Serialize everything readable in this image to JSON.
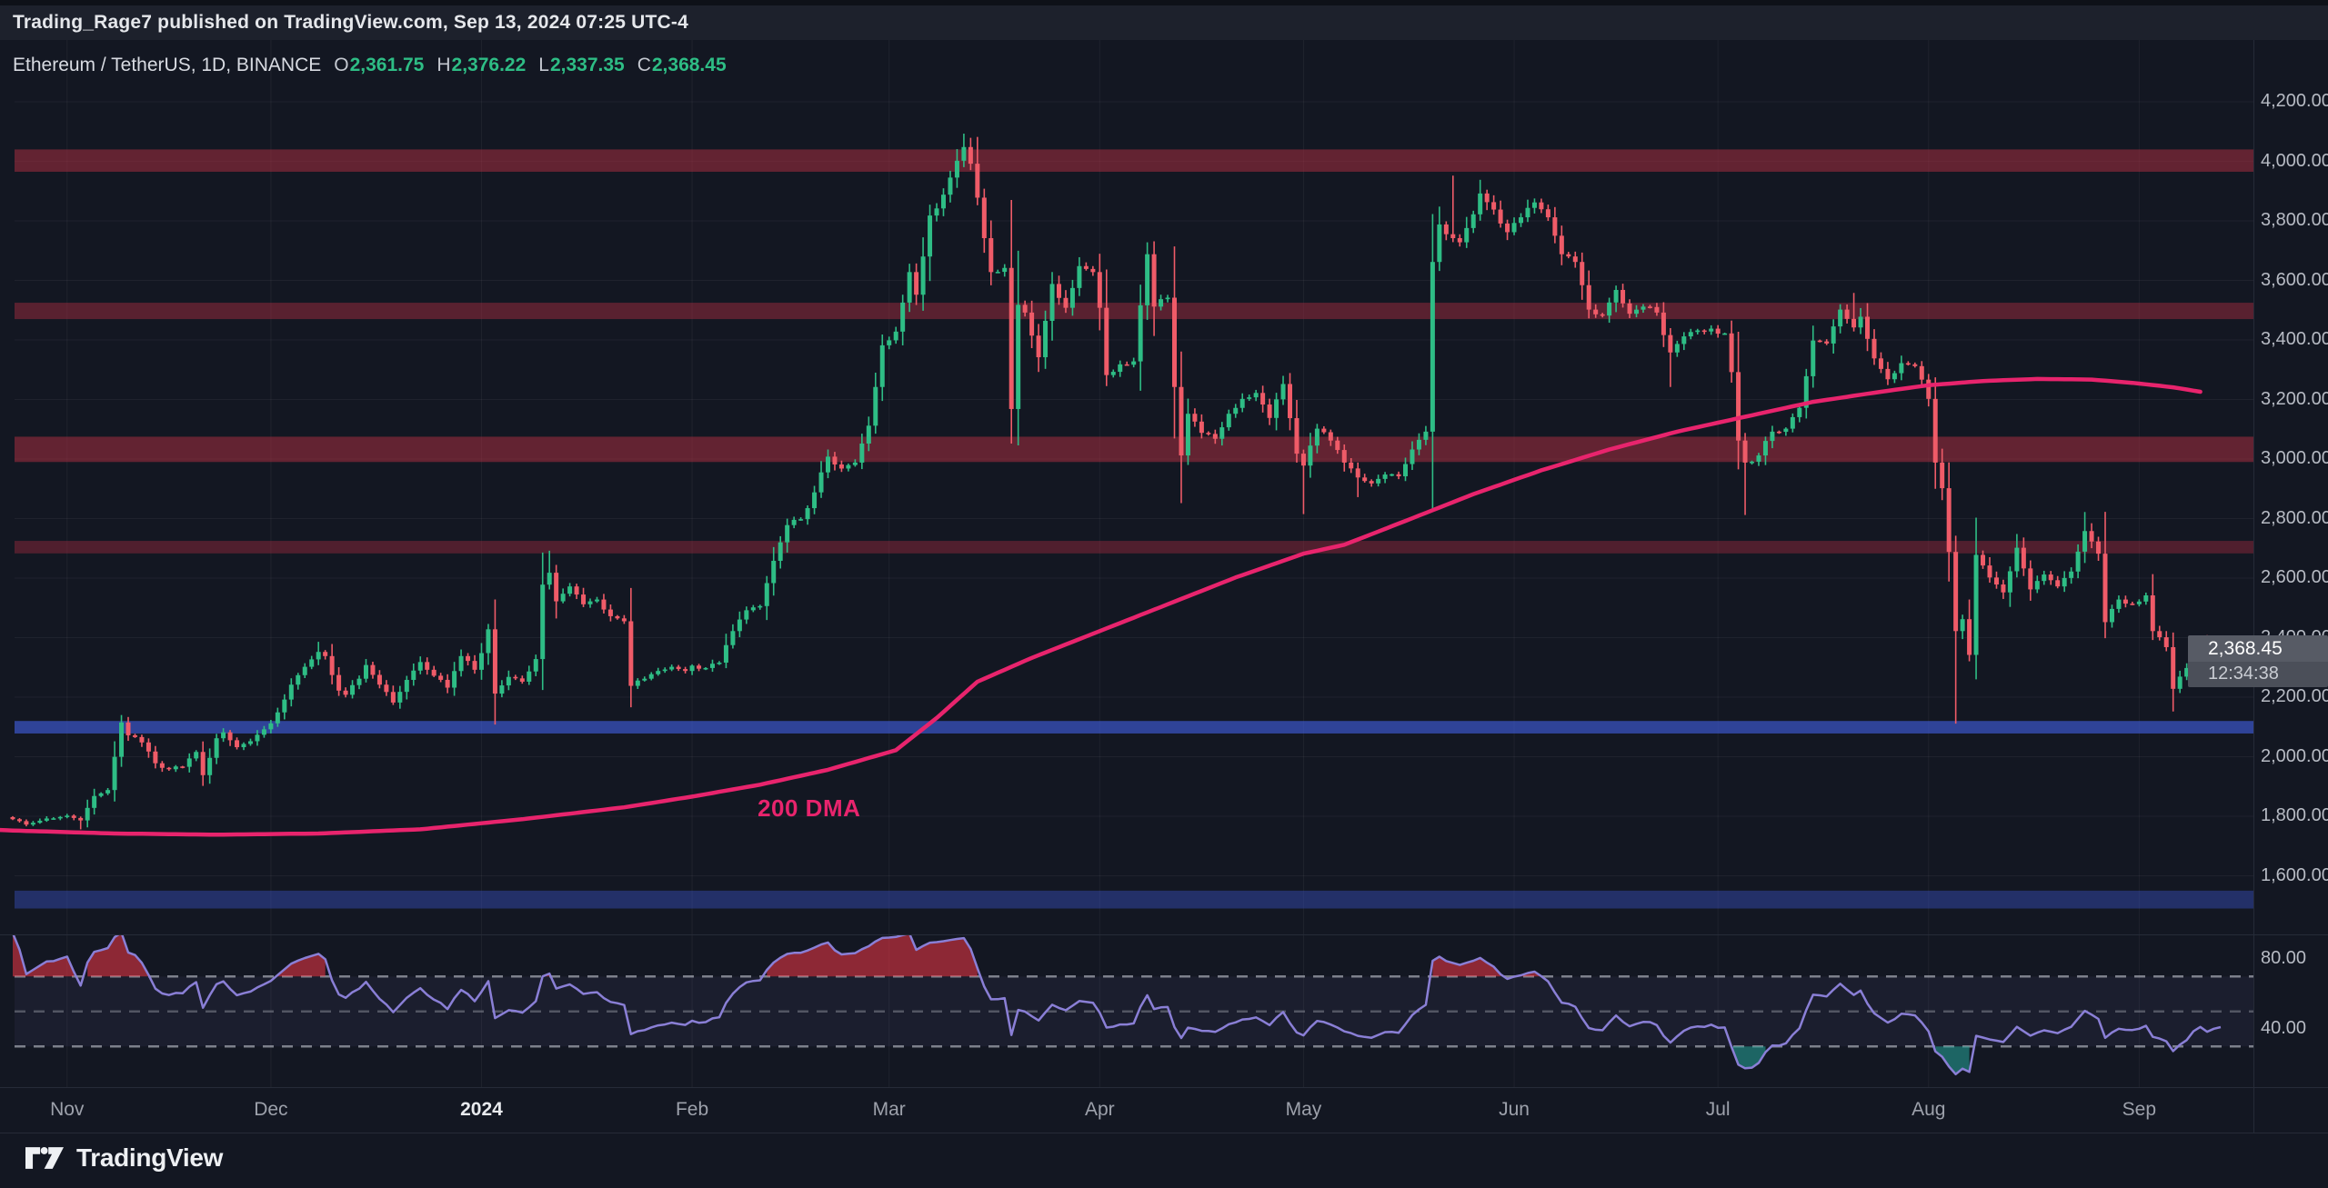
{
  "attribution": {
    "text": "Trading_Rage7 published on TradingView.com, Sep 13, 2024 07:25 UTC-4"
  },
  "legend": {
    "title": "Ethereum / TetherUS, 1D, BINANCE",
    "o_label": "O",
    "o": "2,361.75",
    "h_label": "H",
    "h": "2,376.22",
    "l_label": "L",
    "l": "2,337.35",
    "c_label": "C",
    "c": "2,368.45"
  },
  "badge": {
    "price": "2,368.45",
    "countdown": "12:34:38"
  },
  "footer": {
    "brand": "TradingView"
  },
  "colors": {
    "background": "#131722",
    "topbar": "#1d212c",
    "grid": "rgba(255,255,255,0.05)",
    "up": "#2ebd85",
    "down": "#ef5b68",
    "ma200": "#e8246d",
    "rsi_line": "#8a7fd6",
    "rsi_band": "rgba(138,127,214,0.07)",
    "rsi_overbought_fill": "rgba(242,54,69,0.55)",
    "rsi_oversold_fill": "rgba(38,166,154,0.55)",
    "axis_text": "#b7bbc4",
    "badge_bg": "#575b65"
  },
  "chart_data": {
    "type": "candlestick",
    "title": "Ethereum / TetherUS daily candles with 200 DMA, horizontal S/R zones and RSI",
    "symbol": "Ethereum / TetherUS",
    "interval": "1D",
    "exchange": "BINANCE",
    "last_ohlc": {
      "open": 2361.75,
      "high": 2376.22,
      "low": 2337.35,
      "close": 2368.45
    },
    "visible_range": {
      "start": "2023-10-24",
      "end": "2024-09-13",
      "days": 326
    },
    "price_axis": {
      "min": 1600,
      "max": 4200,
      "step": 200,
      "ylim_pane": [
        1400,
        4430
      ],
      "labels": [
        "1,600.00",
        "1,800.00",
        "2,000.00",
        "2,200.00",
        "2,400.00",
        "2,600.00",
        "2,800.00",
        "3,000.00",
        "3,200.00",
        "3,400.00",
        "3,600.00",
        "3,800.00",
        "4,000.00",
        "4,200.00"
      ]
    },
    "months": [
      {
        "label": "Nov",
        "day": 8,
        "emph": false
      },
      {
        "label": "Dec",
        "day": 38,
        "emph": false
      },
      {
        "label": "2024",
        "day": 69,
        "emph": true
      },
      {
        "label": "Feb",
        "day": 100,
        "emph": false
      },
      {
        "label": "Mar",
        "day": 129,
        "emph": false
      },
      {
        "label": "Apr",
        "day": 160,
        "emph": false
      },
      {
        "label": "May",
        "day": 190,
        "emph": false
      },
      {
        "label": "Jun",
        "day": 221,
        "emph": false
      },
      {
        "label": "Jul",
        "day": 251,
        "emph": false
      },
      {
        "label": "Aug",
        "day": 282,
        "emph": false
      },
      {
        "label": "Sep",
        "day": 313,
        "emph": false
      }
    ],
    "zones": [
      {
        "kind": "resistance",
        "price_from": 3965,
        "price_to": 4040,
        "color": "rgba(173,46,66,0.52)"
      },
      {
        "kind": "resistance",
        "price_from": 3470,
        "price_to": 3525,
        "color": "rgba(173,46,66,0.46)"
      },
      {
        "kind": "resistance",
        "price_from": 2990,
        "price_to": 3075,
        "color": "rgba(173,46,66,0.52)"
      },
      {
        "kind": "resistance",
        "price_from": 2683,
        "price_to": 2725,
        "color": "rgba(173,46,66,0.40)"
      },
      {
        "kind": "support",
        "price_from": 2078,
        "price_to": 2120,
        "color": "rgba(64,96,224,0.62)"
      },
      {
        "kind": "support",
        "price_from": 1490,
        "price_to": 1550,
        "color": "rgba(56,80,190,0.45)"
      }
    ],
    "ma200": {
      "name": "200 DMA",
      "label_anchor": {
        "day": 117,
        "price": 1825
      },
      "points": [
        [
          -2,
          1754
        ],
        [
          0,
          1752
        ],
        [
          15,
          1742
        ],
        [
          30,
          1738
        ],
        [
          45,
          1742
        ],
        [
          60,
          1756
        ],
        [
          75,
          1790
        ],
        [
          90,
          1830
        ],
        [
          100,
          1866
        ],
        [
          110,
          1906
        ],
        [
          120,
          1956
        ],
        [
          130,
          2022
        ],
        [
          136,
          2130
        ],
        [
          142,
          2252
        ],
        [
          150,
          2332
        ],
        [
          160,
          2422
        ],
        [
          170,
          2512
        ],
        [
          180,
          2602
        ],
        [
          190,
          2682
        ],
        [
          196,
          2712
        ],
        [
          205,
          2792
        ],
        [
          215,
          2882
        ],
        [
          225,
          2962
        ],
        [
          235,
          3032
        ],
        [
          245,
          3092
        ],
        [
          255,
          3142
        ],
        [
          265,
          3192
        ],
        [
          275,
          3226
        ],
        [
          282,
          3248
        ],
        [
          290,
          3262
        ],
        [
          298,
          3269
        ],
        [
          306,
          3267
        ],
        [
          312,
          3256
        ],
        [
          318,
          3241
        ],
        [
          322,
          3226
        ]
      ]
    },
    "anchors_day_close": [
      [
        0,
        1790
      ],
      [
        2,
        1772
      ],
      [
        4,
        1785
      ],
      [
        6,
        1793
      ],
      [
        8,
        1802
      ],
      [
        10,
        1786
      ],
      [
        12,
        1868
      ],
      [
        14,
        1888
      ],
      [
        16,
        2115
      ],
      [
        17,
        2072
      ],
      [
        19,
        2048
      ],
      [
        21,
        1978
      ],
      [
        23,
        1958
      ],
      [
        25,
        1966
      ],
      [
        27,
        2016
      ],
      [
        28,
        1938
      ],
      [
        30,
        2062
      ],
      [
        31,
        2082
      ],
      [
        33,
        2032
      ],
      [
        35,
        2052
      ],
      [
        37,
        2092
      ],
      [
        38,
        2112
      ],
      [
        40,
        2192
      ],
      [
        41,
        2242
      ],
      [
        43,
        2302
      ],
      [
        45,
        2352
      ],
      [
        46,
        2338
      ],
      [
        48,
        2222
      ],
      [
        49,
        2208
      ],
      [
        51,
        2262
      ],
      [
        52,
        2308
      ],
      [
        54,
        2242
      ],
      [
        56,
        2182
      ],
      [
        58,
        2258
      ],
      [
        60,
        2318
      ],
      [
        62,
        2272
      ],
      [
        64,
        2232
      ],
      [
        66,
        2338
      ],
      [
        68,
        2292
      ],
      [
        69,
        2348
      ],
      [
        70,
        2428
      ],
      [
        71,
        2212
      ],
      [
        73,
        2268
      ],
      [
        75,
        2252
      ],
      [
        77,
        2328
      ],
      [
        78,
        2578
      ],
      [
        79,
        2618
      ],
      [
        80,
        2522
      ],
      [
        82,
        2572
      ],
      [
        84,
        2512
      ],
      [
        86,
        2528
      ],
      [
        88,
        2472
      ],
      [
        90,
        2455
      ],
      [
        91,
        2238
      ],
      [
        93,
        2262
      ],
      [
        95,
        2288
      ],
      [
        97,
        2302
      ],
      [
        99,
        2288
      ],
      [
        100,
        2306
      ],
      [
        102,
        2298
      ],
      [
        104,
        2316
      ],
      [
        106,
        2422
      ],
      [
        108,
        2492
      ],
      [
        110,
        2506
      ],
      [
        112,
        2658
      ],
      [
        114,
        2778
      ],
      [
        116,
        2798
      ],
      [
        118,
        2888
      ],
      [
        120,
        3008
      ],
      [
        122,
        2968
      ],
      [
        124,
        2988
      ],
      [
        126,
        3112
      ],
      [
        127,
        3242
      ],
      [
        128,
        3382
      ],
      [
        130,
        3428
      ],
      [
        132,
        3628
      ],
      [
        133,
        3552
      ],
      [
        135,
        3818
      ],
      [
        137,
        3888
      ],
      [
        139,
        4002
      ],
      [
        140,
        4048
      ],
      [
        141,
        3992
      ],
      [
        142,
        3878
      ],
      [
        143,
        3742
      ],
      [
        144,
        3628
      ],
      [
        146,
        3642
      ],
      [
        147,
        3168
      ],
      [
        148,
        3518
      ],
      [
        149,
        3492
      ],
      [
        151,
        3342
      ],
      [
        153,
        3588
      ],
      [
        155,
        3508
      ],
      [
        157,
        3648
      ],
      [
        159,
        3628
      ],
      [
        160,
        3508
      ],
      [
        161,
        3282
      ],
      [
        163,
        3318
      ],
      [
        165,
        3328
      ],
      [
        167,
        3688
      ],
      [
        168,
        3512
      ],
      [
        170,
        3542
      ],
      [
        171,
        3242
      ],
      [
        172,
        3012
      ],
      [
        173,
        3152
      ],
      [
        175,
        3088
      ],
      [
        177,
        3068
      ],
      [
        179,
        3152
      ],
      [
        181,
        3202
      ],
      [
        183,
        3222
      ],
      [
        185,
        3138
      ],
      [
        187,
        3252
      ],
      [
        189,
        3018
      ],
      [
        190,
        2978
      ],
      [
        192,
        3102
      ],
      [
        194,
        3062
      ],
      [
        196,
        2988
      ],
      [
        198,
        2938
      ],
      [
        200,
        2918
      ],
      [
        202,
        2948
      ],
      [
        204,
        2942
      ],
      [
        206,
        3032
      ],
      [
        208,
        3092
      ],
      [
        209,
        3662
      ],
      [
        210,
        3788
      ],
      [
        212,
        3742
      ],
      [
        213,
        3728
      ],
      [
        215,
        3822
      ],
      [
        216,
        3892
      ],
      [
        218,
        3838
      ],
      [
        220,
        3762
      ],
      [
        222,
        3812
      ],
      [
        224,
        3862
      ],
      [
        226,
        3812
      ],
      [
        228,
        3688
      ],
      [
        230,
        3662
      ],
      [
        232,
        3502
      ],
      [
        234,
        3482
      ],
      [
        236,
        3568
      ],
      [
        238,
        3488
      ],
      [
        240,
        3512
      ],
      [
        242,
        3492
      ],
      [
        244,
        3358
      ],
      [
        246,
        3412
      ],
      [
        248,
        3432
      ],
      [
        250,
        3438
      ],
      [
        252,
        3422
      ],
      [
        253,
        3292
      ],
      [
        254,
        3062
      ],
      [
        255,
        2988
      ],
      [
        257,
        3012
      ],
      [
        259,
        3092
      ],
      [
        261,
        3102
      ],
      [
        263,
        3172
      ],
      [
        265,
        3398
      ],
      [
        267,
        3388
      ],
      [
        269,
        3502
      ],
      [
        271,
        3442
      ],
      [
        272,
        3478
      ],
      [
        274,
        3338
      ],
      [
        276,
        3268
      ],
      [
        278,
        3322
      ],
      [
        280,
        3312
      ],
      [
        282,
        3202
      ],
      [
        283,
        2988
      ],
      [
        284,
        2902
      ],
      [
        285,
        2688
      ],
      [
        286,
        2422
      ],
      [
        287,
        2462
      ],
      [
        288,
        2342
      ],
      [
        289,
        2678
      ],
      [
        291,
        2602
      ],
      [
        293,
        2552
      ],
      [
        295,
        2702
      ],
      [
        297,
        2562
      ],
      [
        299,
        2612
      ],
      [
        301,
        2572
      ],
      [
        303,
        2622
      ],
      [
        305,
        2758
      ],
      [
        307,
        2682
      ],
      [
        308,
        2452
      ],
      [
        310,
        2528
      ],
      [
        312,
        2512
      ],
      [
        314,
        2542
      ],
      [
        315,
        2422
      ],
      [
        317,
        2368
      ],
      [
        318,
        2228
      ],
      [
        320,
        2298
      ],
      [
        321,
        2358
      ],
      [
        322,
        2388
      ],
      [
        323,
        2338
      ],
      [
        324,
        2358
      ],
      [
        325,
        2368.45
      ]
    ],
    "wick_highs": [
      [
        16,
        2140
      ],
      [
        45,
        2386
      ],
      [
        70,
        2446
      ],
      [
        79,
        2692
      ],
      [
        120,
        3032
      ],
      [
        140,
        4093
      ],
      [
        142,
        4082
      ],
      [
        157,
        3678
      ],
      [
        167,
        3728
      ],
      [
        210,
        3848
      ],
      [
        212,
        3952
      ],
      [
        216,
        3938
      ],
      [
        271,
        3558
      ],
      [
        305,
        2822
      ]
    ],
    "wick_lows": [
      [
        10,
        1756
      ],
      [
        71,
        2108
      ],
      [
        91,
        2166
      ],
      [
        147,
        3052
      ],
      [
        161,
        3245
      ],
      [
        172,
        2852
      ],
      [
        190,
        2815
      ],
      [
        198,
        2872
      ],
      [
        244,
        3242
      ],
      [
        255,
        2812
      ],
      [
        286,
        2111
      ],
      [
        308,
        2398
      ],
      [
        315,
        2392
      ],
      [
        318,
        2152
      ]
    ],
    "rsi": {
      "period": 14,
      "axis_labels": [
        {
          "text": "80.00",
          "value": 80
        },
        {
          "text": "40.00",
          "value": 40
        }
      ],
      "dashed_levels": [
        70,
        50,
        30
      ],
      "shaded_band": [
        30,
        70
      ],
      "overbought_above": 70,
      "oversold_below": 30,
      "last_value_approx": 45
    }
  }
}
